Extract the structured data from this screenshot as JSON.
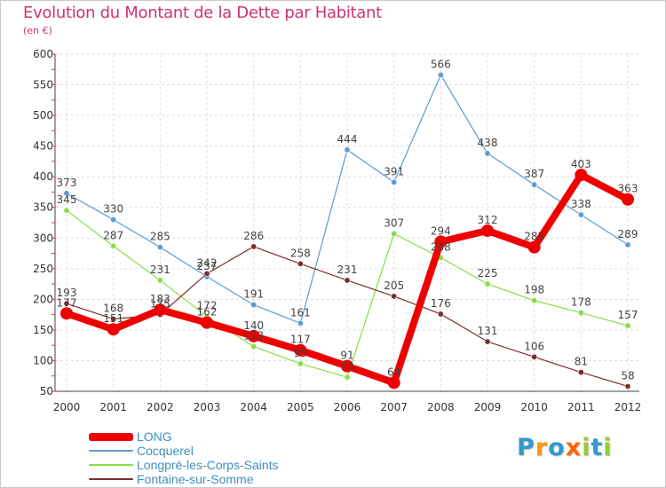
{
  "chart_data": {
    "type": "line",
    "title": "Evolution du Montant de la Dette par Habitant",
    "subtitle": "(en €)",
    "xlabel": "",
    "ylabel": "",
    "x": [
      "2000",
      "2001",
      "2002",
      "2003",
      "2004",
      "2005",
      "2006",
      "2007",
      "2008",
      "2009",
      "2010",
      "2011",
      "2012"
    ],
    "ylim": [
      50,
      600
    ],
    "yticks": [
      50,
      100,
      150,
      200,
      250,
      300,
      350,
      400,
      450,
      500,
      550,
      600
    ],
    "grid": true,
    "legend_position": "bottom-left",
    "series": [
      {
        "name": "LONG",
        "color": "#ee0000",
        "values": [
          177,
          151,
          183,
          162,
          140,
          117,
          91,
          64,
          294,
          312,
          285,
          403,
          363
        ],
        "labels": [
          "177",
          "151",
          "183",
          "162",
          "140",
          "117",
          "91",
          "64",
          "294",
          "312",
          "285",
          "403",
          "363"
        ]
      },
      {
        "name": "Cocquerel",
        "color": "#5b9bd5",
        "values": [
          373,
          330,
          285,
          237,
          191,
          161,
          444,
          391,
          566,
          438,
          387,
          338,
          289
        ],
        "labels": [
          "373",
          "330",
          "285",
          "237",
          "191",
          "161",
          "444",
          "391",
          "566",
          "438",
          "387",
          "338",
          "289"
        ]
      },
      {
        "name": "Longpré-les-Corps-Saints",
        "color": "#88dd44",
        "values": [
          345,
          287,
          231,
          172,
          123,
          95,
          73,
          307,
          268,
          225,
          198,
          178,
          157
        ],
        "labels": [
          "345",
          "287",
          "231",
          "172",
          "123",
          "95",
          "73",
          "307",
          "268",
          "225",
          "198",
          "178",
          "157"
        ]
      },
      {
        "name": "Fontaine-sur-Somme",
        "color": "#7a2e2e",
        "values": [
          193,
          168,
          175,
          242,
          286,
          258,
          231,
          205,
          176,
          131,
          106,
          81,
          58
        ],
        "labels": [
          "193",
          "168",
          "175",
          "242",
          "286",
          "258",
          "231",
          "205",
          "176",
          "131",
          "106",
          "81",
          "58"
        ]
      }
    ]
  },
  "logo": {
    "letters": [
      "P",
      "r",
      "o",
      "x",
      "i",
      "t",
      "i"
    ],
    "colors": [
      "#3399cc",
      "#ff9900",
      "#3399cc",
      "#ff6600",
      "#99cc33",
      "#3399cc",
      "#99cc33"
    ]
  }
}
